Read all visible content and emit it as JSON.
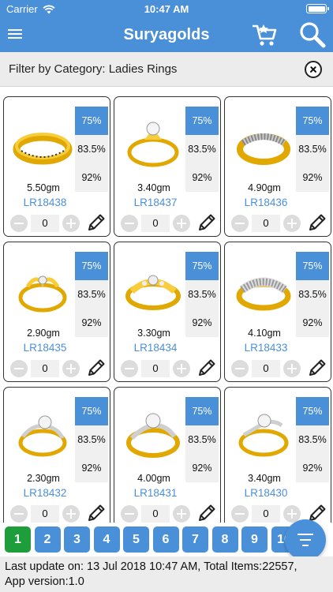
{
  "status_bar": {
    "carrier": "Carrier",
    "time": "10:47 AM"
  },
  "nav": {
    "title": "Suryagolds",
    "menu_icon": "hamburger-icon",
    "cart_icon": "cart-icon",
    "search_icon": "search-icon"
  },
  "filter": {
    "label": "Filter by Category: Ladies Rings",
    "clear_icon": "close-circle-icon"
  },
  "products": [
    {
      "weight": "5.50gm",
      "code": "LR18438",
      "purities": [
        "75%",
        "83.5%",
        "92%"
      ],
      "selected_purity": "75%",
      "qty": "0"
    },
    {
      "weight": "3.40gm",
      "code": "LR18437",
      "purities": [
        "75%",
        "83.5%",
        "92%"
      ],
      "selected_purity": "75%",
      "qty": "0"
    },
    {
      "weight": "4.90gm",
      "code": "LR18436",
      "purities": [
        "75%",
        "83.5%",
        "92%"
      ],
      "selected_purity": "75%",
      "qty": "0"
    },
    {
      "weight": "2.90gm",
      "code": "LR18435",
      "purities": [
        "75%",
        "83.5%",
        "92%"
      ],
      "selected_purity": "75%",
      "qty": "0"
    },
    {
      "weight": "3.30gm",
      "code": "LR18434",
      "purities": [
        "75%",
        "83.5%",
        "92%"
      ],
      "selected_purity": "75%",
      "qty": "0"
    },
    {
      "weight": "4.10gm",
      "code": "LR18433",
      "purities": [
        "75%",
        "83.5%",
        "92%"
      ],
      "selected_purity": "75%",
      "qty": "0"
    },
    {
      "weight": "2.30gm",
      "code": "LR18432",
      "purities": [
        "75%",
        "83.5%",
        "92%"
      ],
      "selected_purity": "75%",
      "qty": "0"
    },
    {
      "weight": "4.00gm",
      "code": "LR18431",
      "purities": [
        "75%",
        "83.5%",
        "92%"
      ],
      "selected_purity": "75%",
      "qty": "0"
    },
    {
      "weight": "3.40gm",
      "code": "LR18430",
      "purities": [
        "75%",
        "83.5%",
        "92%"
      ],
      "selected_purity": "75%",
      "qty": "0"
    }
  ],
  "pagination": {
    "pages": [
      "1",
      "2",
      "3",
      "4",
      "5",
      "6",
      "7",
      "8",
      "9",
      "10"
    ],
    "current": "1"
  },
  "fab": {
    "icon": "filter-list-icon"
  },
  "footer": {
    "line1": "Last update on: 13 Jul 2018 10:47 AM, Total Items:22557,",
    "line2": "App version:1.0"
  },
  "colors": {
    "primary": "#4a90d9",
    "active_page": "#1e9e3a",
    "gold": "#f0b90b"
  }
}
